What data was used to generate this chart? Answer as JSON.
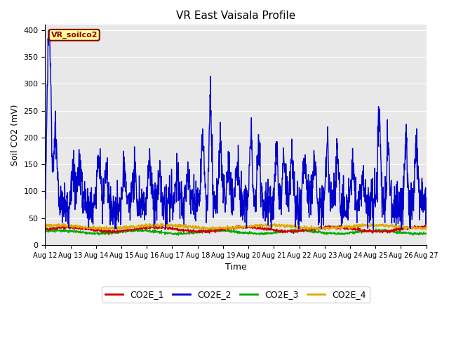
{
  "title": "VR East Vaisala Profile",
  "xlabel": "Time",
  "ylabel": "Soil CO2 (mV)",
  "ylim": [
    0,
    410
  ],
  "bg_color": "#e8e8e8",
  "fig_bg": "#ffffff",
  "grid_color": "#ffffff",
  "annotation_label": "VR_soilco2",
  "annotation_bg": "#ffff99",
  "annotation_edge": "#8b0000",
  "xtick_labels": [
    "Aug 12",
    "Aug 13",
    "Aug 14",
    "Aug 15",
    "Aug 16",
    "Aug 17",
    "Aug 18",
    "Aug 19",
    "Aug 20",
    "Aug 21",
    "Aug 22",
    "Aug 23",
    "Aug 24",
    "Aug 25",
    "Aug 26",
    "Aug 27"
  ],
  "ytick_labels": [
    "0",
    "50",
    "100",
    "150",
    "200",
    "250",
    "300",
    "350",
    "400"
  ],
  "co2e_1_color": "#cc0000",
  "co2e_2_color": "#0000cc",
  "co2e_3_color": "#00aa00",
  "co2e_4_color": "#ddaa00",
  "lw": 1.0,
  "legend_entries": [
    "CO2E_1",
    "CO2E_2",
    "CO2E_3",
    "CO2E_4"
  ],
  "legend_colors": [
    "#cc0000",
    "#0000cc",
    "#00aa00",
    "#ddaa00"
  ],
  "n_points": 1500,
  "seed": 42
}
